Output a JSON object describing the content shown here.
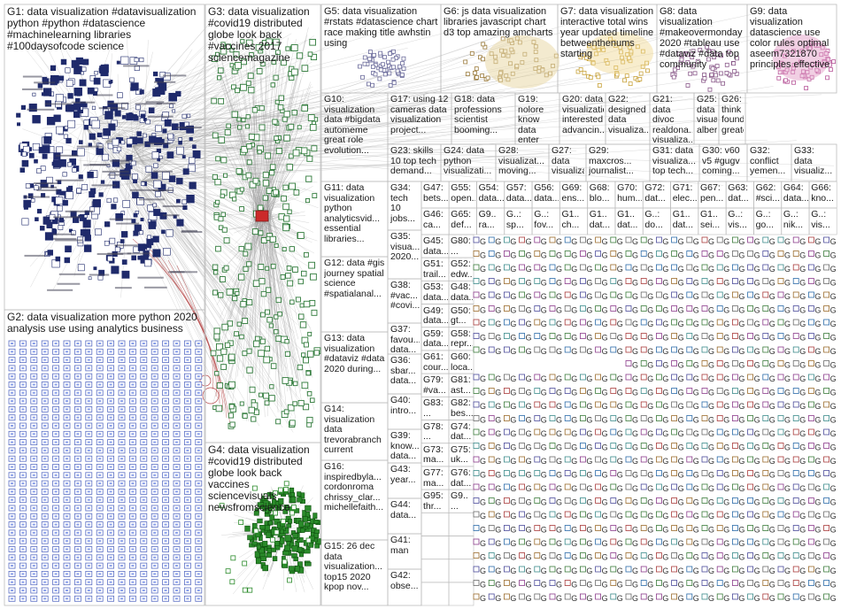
{
  "groups": [
    {
      "id": "G1",
      "text": "G1: data visualization #datavisualization python #python #datascience #machinelearning libraries #100daysofcode science",
      "box": "big"
    },
    {
      "id": "G2",
      "text": "G2: data visualization more python 2020 analysis use using analytics business",
      "box": "big"
    },
    {
      "id": "G3",
      "text": "G3: data visualization #covid19 distributed globe look back #vaccines 2017 sciencemagazine",
      "box": "big"
    },
    {
      "id": "G4",
      "text": "G4: data visualization #covid19 distributed globe look back vaccines sciencevisuals newsfromscience",
      "box": "big"
    },
    {
      "id": "G5",
      "text": "G5: data visualization #rstats #datascience chart race making title awhstin using",
      "box": "med"
    },
    {
      "id": "G6",
      "text": "G6: js data visualization libraries javascript chart d3 top amazing amcharts",
      "box": "med"
    },
    {
      "id": "G7",
      "text": "G7: data visualization interactive total wins year updated timeline betweenthenums starting",
      "box": "med"
    },
    {
      "id": "G8",
      "text": "G8: data visualization #makeovermonday 2020 #tableau use #dataviz #data top community",
      "box": "med"
    },
    {
      "id": "G9",
      "text": "G9: data visualization datascience use color rules optimal aseem7321870 principles effective",
      "box": "med"
    },
    {
      "id": "G10",
      "text": "G10: visualization data #bigdata automeme great role evolution...",
      "box": "small"
    },
    {
      "id": "G11",
      "text": "G11: data visualization python analyticsvid... essential libraries...",
      "box": "small"
    },
    {
      "id": "G12",
      "text": "G12: data #gis journey spatial science #spatialanal...",
      "box": "small"
    },
    {
      "id": "G13",
      "text": "G13: data visualization #dataviz #data 2020 during...",
      "box": "small"
    },
    {
      "id": "G14",
      "text": "G14: visualization data trevorabranch current",
      "box": "small"
    },
    {
      "id": "G15",
      "text": "G15: 26 dec data visualization... top15 2020 kpop nov...",
      "box": "small"
    },
    {
      "id": "G16",
      "text": "G16: inspiredbyla... cordonroma chrissy_clar... michellefaith...",
      "box": "small"
    },
    {
      "id": "G17",
      "text": "G17: using 12 cameras data visualization project...",
      "box": "small"
    },
    {
      "id": "G18",
      "text": "G18: data professions scientist booming...",
      "box": "small"
    },
    {
      "id": "G19",
      "text": "G19: nolore know data enter year pregnant...",
      "box": "small"
    },
    {
      "id": "G20",
      "text": "G20: data visualization interested advancin...",
      "box": "small"
    },
    {
      "id": "G22",
      "text": "G22: designed data visualiza...",
      "box": "small"
    },
    {
      "id": "G21",
      "text": "G21: data divoc realdona... visualiza...",
      "box": "small"
    },
    {
      "id": "G25",
      "text": "G25: data visualiza... albertoc...",
      "box": "small"
    },
    {
      "id": "G26",
      "text": "G26: think found greatest...",
      "box": "small"
    },
    {
      "id": "G23",
      "text": "G23: skills 10 top tech demand...",
      "box": "small"
    },
    {
      "id": "G24",
      "text": "G24: data python visualizati...",
      "box": "small"
    },
    {
      "id": "G28",
      "text": "G28: visualizat... moving...",
      "box": "small"
    },
    {
      "id": "G27",
      "text": "G27: data visualizat...",
      "box": "small"
    },
    {
      "id": "G29",
      "text": "G29: maxcros... journalist...",
      "box": "small"
    },
    {
      "id": "G31",
      "text": "G31: data visualiza... top tech...",
      "box": "small"
    },
    {
      "id": "G30",
      "text": "G30: v60 v5 #gugv coming...",
      "box": "small"
    },
    {
      "id": "G32",
      "text": "G32: conflict yemen...",
      "box": "small"
    },
    {
      "id": "G33",
      "text": "G33: data visualiz...",
      "box": "small"
    },
    {
      "id": "G34",
      "text": "G34: tech 10 jobs...",
      "box": "small"
    },
    {
      "id": "G35",
      "text": "G35: visua... 2020...",
      "box": "small"
    },
    {
      "id": "G38",
      "text": "G38: #vac... #covi...",
      "box": "small"
    },
    {
      "id": "G37",
      "text": "G37: favou... data...",
      "box": "small"
    },
    {
      "id": "G36",
      "text": "G36: sbar... data...",
      "box": "small"
    },
    {
      "id": "G40",
      "text": "G40: intro...",
      "box": "small"
    },
    {
      "id": "G39",
      "text": "G39: know... data...",
      "box": "small"
    },
    {
      "id": "G43",
      "text": "G43: year...",
      "box": "small"
    },
    {
      "id": "G44",
      "text": "G44: data...",
      "box": "small"
    },
    {
      "id": "G41",
      "text": "G41: man",
      "box": "small"
    },
    {
      "id": "G42",
      "text": "G42: obse...",
      "box": "small"
    }
  ],
  "grid_cells": [
    "G47: bets...",
    "G55: open...",
    "G54: data...",
    "G57: data...",
    "G56: data...",
    "G69: ens...",
    "G68: blo...",
    "G70: hum...",
    "G72: dat...",
    "G71: elec...",
    "G67: pen...",
    "G63: dat...",
    "G62: #sci...",
    "G64: data...",
    "G66: kno...",
    "G46: ca...",
    "G65: def...",
    "G9.. ra...",
    "G..: sp...",
    "G..: fov...",
    "G1.. ch...",
    "G1.. dat...",
    "G1.. dat...",
    "G..: do...",
    "G1.. dat...",
    "G1.. sei...",
    "G..: vis...",
    "G..: go...",
    "G..: nik...",
    "G..: vis...",
    "G45: data...",
    "G80: ...",
    "G51: trail...",
    "G52: edw...",
    "G53: data...",
    "G48: data...",
    "G49: data...",
    "G50: gt...",
    "G59: data...",
    "G58: repr...",
    "G61: cour...",
    "G60: loca...",
    "G79: #va...",
    "G81: ast...",
    "G83: ...",
    "G82: bes...",
    "G78: ...",
    "G74: dat...",
    "G73: ma...",
    "G75: uk...",
    "G77: ma...",
    "G76: dat...",
    "G95: thr...",
    "G9.. ..."
  ],
  "node_labels": "data visualization",
  "colors": {
    "g1_node": "#1f2a6b",
    "g2_node": "#5b6fc4",
    "g3_node": "#2f7a3a",
    "g4_node": "#2a8a2a",
    "edge": "#9a9a9a",
    "edge_red": "#b84a4a",
    "box_border": "#bdbdbd"
  }
}
